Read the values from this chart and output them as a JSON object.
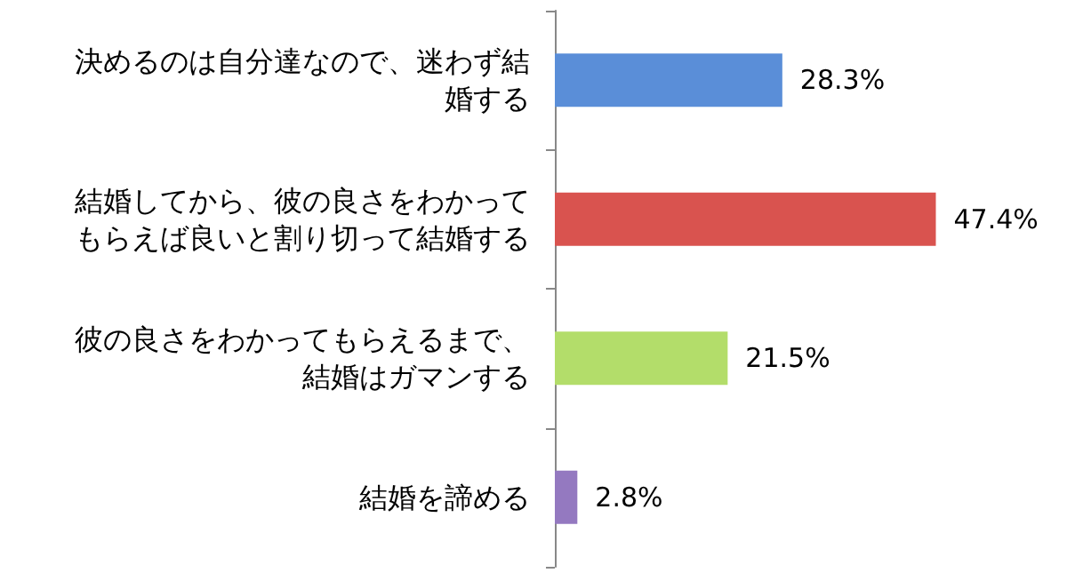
{
  "chart_data": {
    "type": "bar",
    "orientation": "horizontal",
    "categories": [
      "決めるのは自分達なので、迷わず結婚する",
      "結婚してから、彼の良さをわかってもらえば良いと割り切って結婚する",
      "彼の良さをわかってもらえるまで、結婚はガマンする",
      "結婚を諦める"
    ],
    "values": [
      28.3,
      47.4,
      21.5,
      2.8
    ],
    "value_labels": [
      "28.3%",
      "47.4%",
      "21.5%",
      "2.8%"
    ],
    "colors": [
      "#5a8ed8",
      "#d9534f",
      "#b3dd6a",
      "#9479c0"
    ]
  }
}
